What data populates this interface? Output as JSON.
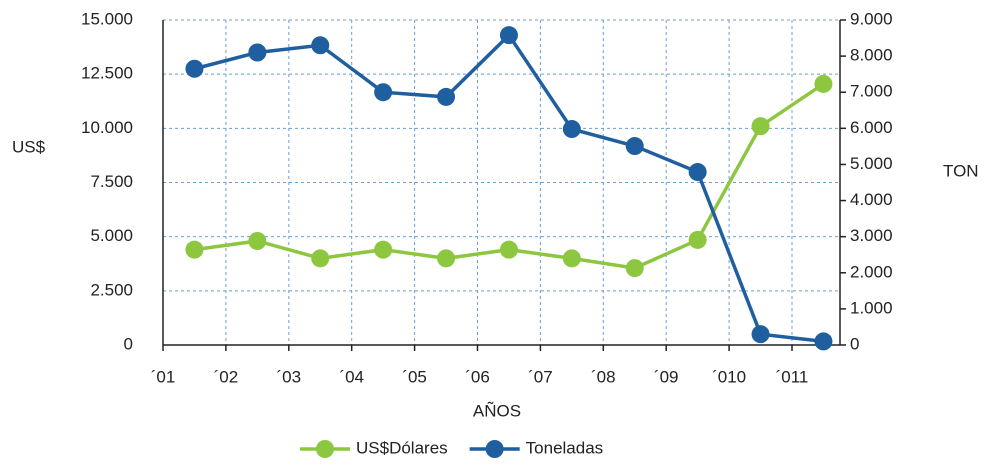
{
  "chart_data": {
    "type": "line",
    "categories": [
      "´01",
      "´02",
      "´03",
      "´04",
      "´05",
      "´06",
      "´07",
      "´08",
      "´09",
      "´010",
      "´011"
    ],
    "series": [
      {
        "name": "US$Dólares",
        "color": "#8dc63f",
        "axis": "y",
        "values": [
          4400,
          4800,
          4000,
          4400,
          4000,
          4400,
          4000,
          3550,
          4850,
          10100,
          12050
        ]
      },
      {
        "name": "Toneladas",
        "color": "#1f5fa0",
        "axis": "y2",
        "values": [
          7650,
          8100,
          8300,
          7000,
          6870,
          8580,
          5980,
          5510,
          4790,
          300,
          100
        ]
      }
    ],
    "ylabel": "US$",
    "y2label": "TON",
    "xlabel": "AÑOS",
    "ylim": [
      0,
      15000
    ],
    "yticks": [
      0,
      {
        "value": 2500,
        "label": "2.500"
      },
      {
        "value": 5000,
        "label": "5.000"
      },
      {
        "value": 7500,
        "label": "7.500"
      },
      {
        "value": 10000,
        "label": "10.000"
      },
      {
        "value": 12500,
        "label": "12.500"
      },
      {
        "value": 15000,
        "label": "15.000"
      }
    ],
    "y2lim": [
      0,
      9000
    ],
    "y2ticks": [
      0,
      {
        "value": 1000,
        "label": "1.000"
      },
      {
        "value": 2000,
        "label": "2.000"
      },
      {
        "value": 3000,
        "label": "3.000"
      },
      {
        "value": 4000,
        "label": "4.000"
      },
      {
        "value": 5000,
        "label": "5.000"
      },
      {
        "value": 6000,
        "label": "6.000"
      },
      {
        "value": 7000,
        "label": "7.000"
      },
      {
        "value": 8000,
        "label": "8.000"
      },
      {
        "value": 9000,
        "label": "9.000"
      }
    ],
    "grid": true,
    "legend": "bottom"
  }
}
